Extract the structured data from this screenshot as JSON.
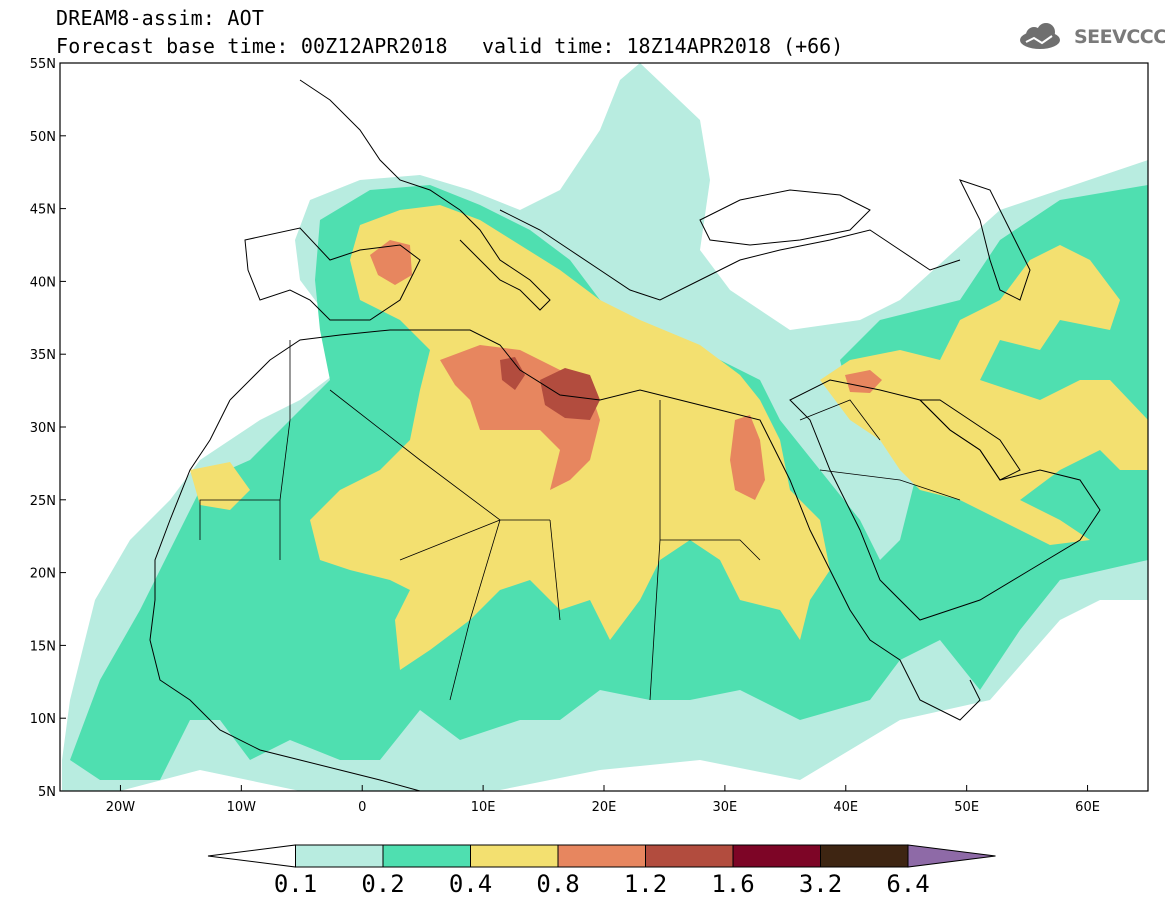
{
  "header": {
    "title_line1": "DREAM8-assim: AOT",
    "title_line2": "Forecast base time: 00Z12APR2018",
    "valid_time": "valid time: 18Z14APR2018 (+66)",
    "logo_text": "SEEVCCC"
  },
  "map": {
    "variable": "AOT",
    "lat_range": [
      5,
      55
    ],
    "lon_range": [
      -25,
      65
    ],
    "lat_labels": [
      "55N",
      "50N",
      "45N",
      "40N",
      "35N",
      "30N",
      "25N",
      "20N",
      "15N",
      "10N",
      "5N"
    ],
    "lon_labels": [
      "20W",
      "10W",
      "0",
      "10E",
      "20E",
      "30E",
      "40E",
      "50E",
      "60E"
    ]
  },
  "colorbar": {
    "labels": [
      "0.1",
      "0.2",
      "0.4",
      "0.8",
      "1.2",
      "1.6",
      "3.2",
      "6.4"
    ],
    "colors": [
      "#ffffff",
      "#b8ece0",
      "#4fdfb0",
      "#f3e070",
      "#e7865f",
      "#b24c3e",
      "#7d0526",
      "#3e2512",
      "#8e6aa7"
    ]
  },
  "colors": {
    "c01": "#b8ece0",
    "c02": "#4fdfb0",
    "c04": "#f3e070",
    "c08": "#e7865f",
    "c12": "#b24c3e",
    "c16": "#7d0526"
  }
}
